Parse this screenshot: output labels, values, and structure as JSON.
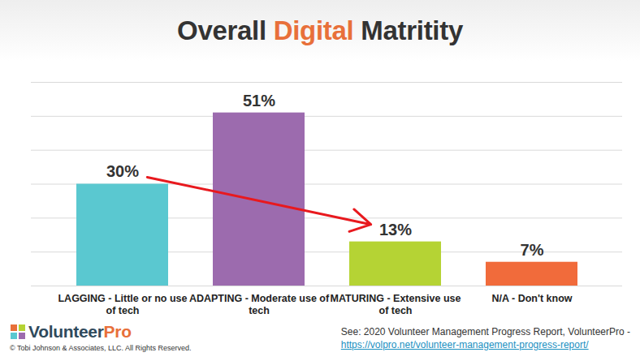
{
  "chart_data": {
    "type": "bar",
    "title": "Overall Digital Matritity",
    "categories": [
      "LAGGING - Little or no use of tech",
      "ADAPTING - Moderate use of tech",
      "MATURING - Extensive use of tech",
      "N/A - Don't know"
    ],
    "values": [
      30,
      51,
      13,
      7
    ],
    "value_labels": [
      "30%",
      "51%",
      "13%",
      "7%"
    ],
    "colors": [
      "#5ac8d0",
      "#9c6bae",
      "#b5d334",
      "#f16b3b"
    ],
    "ylim": [
      0,
      60
    ],
    "yticks": [
      0,
      10,
      20,
      30,
      40,
      50,
      60
    ],
    "grid": true,
    "tick_labels": "x",
    "data_labels": true,
    "logo": "VolunteerPro",
    "copyright": "© Tobi Johnson & Associates, LLC. All Rights Reserved.",
    "source": "See: 2020 Volunteer Management Progress Report, VolunteerPro -",
    "source_url": "https://volpro.net/volunteer-management-progress-report/"
  }
}
